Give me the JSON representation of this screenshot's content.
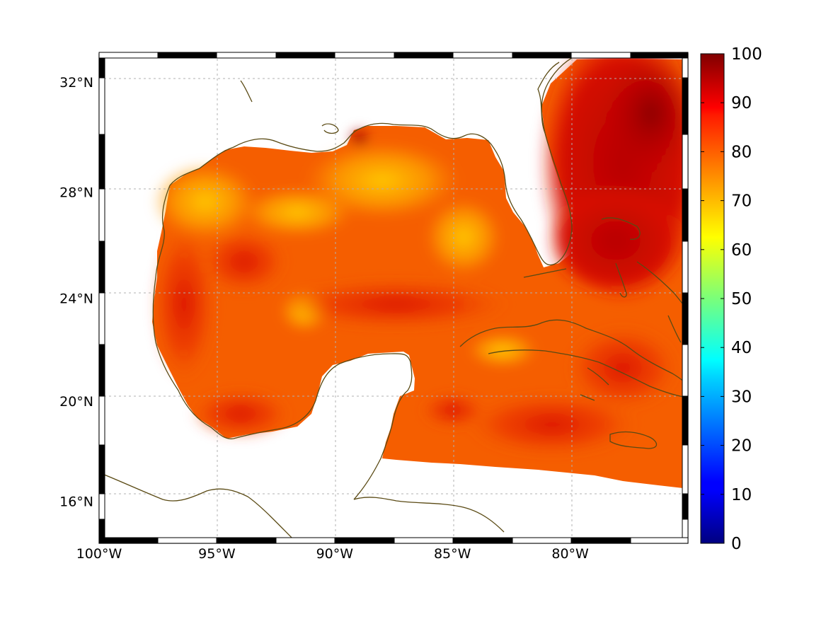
{
  "chart_data": {
    "type": "heatmap",
    "title": "",
    "region": "Gulf of Mexico and western Caribbean",
    "lon_range": [
      -100,
      -75
    ],
    "lat_range": [
      14.3,
      33
    ],
    "x_ticks": [
      {
        "value": -100,
        "label": "100°W"
      },
      {
        "value": -95,
        "label": "95°W"
      },
      {
        "value": -90,
        "label": "90°W"
      },
      {
        "value": -85,
        "label": "85°W"
      },
      {
        "value": -80,
        "label": "80°W"
      }
    ],
    "y_ticks": [
      {
        "value": 32,
        "label": "32°N"
      },
      {
        "value": 28,
        "label": "28°N"
      },
      {
        "value": 24,
        "label": "24°N"
      },
      {
        "value": 20,
        "label": "20°N"
      },
      {
        "value": 16,
        "label": "16°N"
      }
    ],
    "grid": true,
    "colorbar": {
      "range": [
        0,
        100
      ],
      "ticks": [
        {
          "value": 0,
          "label": "0"
        },
        {
          "value": 10,
          "label": "10"
        },
        {
          "value": 20,
          "label": "20"
        },
        {
          "value": 30,
          "label": "30"
        },
        {
          "value": 40,
          "label": "40"
        },
        {
          "value": 50,
          "label": "50"
        },
        {
          "value": 60,
          "label": "60"
        },
        {
          "value": 70,
          "label": "70"
        },
        {
          "value": 80,
          "label": "80"
        },
        {
          "value": 90,
          "label": "90"
        },
        {
          "value": 100,
          "label": "100"
        }
      ],
      "colormap": "jet",
      "placement": "right"
    },
    "field_summary": {
      "typical_range": [
        70,
        98
      ],
      "high_areas": [
        "Atlantic east of Florida",
        "Mississippi delta",
        "Bay of Campeche"
      ],
      "low_areas": [
        "northern central Gulf",
        "eastern central Gulf"
      ]
    }
  },
  "colors": {
    "coastline": "#5a4a14",
    "land": "#ffffff",
    "grid": "#b0b0b0"
  }
}
